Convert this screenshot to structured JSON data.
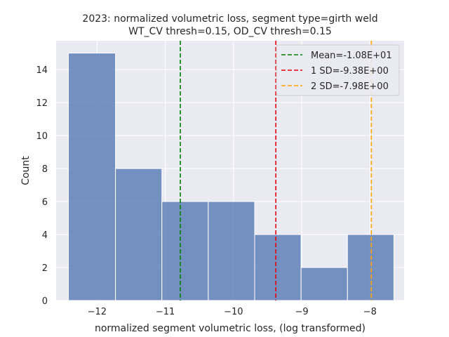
{
  "chart_data": {
    "type": "bar",
    "title_line1": "2023: normalized volumetric loss, segment type=girth weld",
    "title_line2": "WT_CV thresh=0.15, OD_CV thresh=0.15",
    "xlabel": "normalized segment volumetric loss, (log transformed)",
    "ylabel": "Count",
    "xlim": [
      -12.6,
      -7.5
    ],
    "ylim": [
      0,
      15.75
    ],
    "x_ticks": [
      -12,
      -11,
      -10,
      -9,
      -8
    ],
    "x_tick_labels": [
      "−12",
      "−11",
      "−10",
      "−9",
      "−8"
    ],
    "y_ticks": [
      0,
      2,
      4,
      6,
      8,
      10,
      12,
      14
    ],
    "y_tick_labels": [
      "0",
      "2",
      "4",
      "6",
      "8",
      "10",
      "12",
      "14"
    ],
    "bins": [
      {
        "start": -12.42,
        "end": -11.73,
        "count": 15
      },
      {
        "start": -11.73,
        "end": -11.05,
        "count": 8
      },
      {
        "start": -11.05,
        "end": -10.37,
        "count": 6
      },
      {
        "start": -10.37,
        "end": -9.69,
        "count": 6
      },
      {
        "start": -9.69,
        "end": -9.01,
        "count": 4
      },
      {
        "start": -9.01,
        "end": -8.33,
        "count": 2
      },
      {
        "start": -8.33,
        "end": -7.65,
        "count": 4
      }
    ],
    "bar_color": "#4c72b0",
    "reference_lines": [
      {
        "label": "Mean=-1.08E+01",
        "x": -10.78,
        "color": "#008000"
      },
      {
        "label": "1 SD=-9.38E+00",
        "x": -9.38,
        "color": "#e8000b"
      },
      {
        "label": "2 SD=-7.98E+00",
        "x": -7.98,
        "color": "#ffa500"
      }
    ],
    "grid": true,
    "legend_placement": "top-right"
  }
}
